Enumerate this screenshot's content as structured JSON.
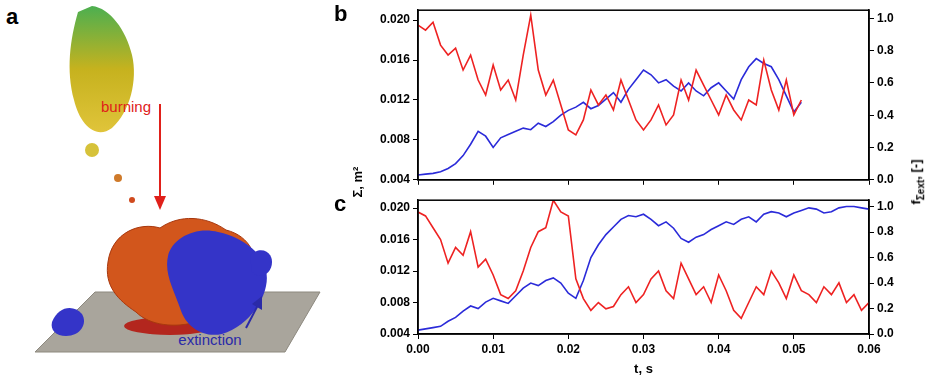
{
  "image_panel": {
    "panel_letter": "a",
    "annotations": [
      {
        "text": "burning",
        "color": "#e0201a"
      },
      {
        "text": "extinction",
        "color": "#2a2aa8"
      }
    ]
  },
  "shared_axes": {
    "ylabel": "Σ, m²",
    "y2label": {
      "main": "f",
      "sub": "Σext",
      "rest": ", [-]"
    }
  },
  "chart_data": [
    {
      "type": "line",
      "panel_letter": "b",
      "tick_labels": "y",
      "grid": false,
      "x": [
        0,
        0.001,
        0.002,
        0.003,
        0.004,
        0.005,
        0.006,
        0.007,
        0.008,
        0.009,
        0.01,
        0.011,
        0.012,
        0.013,
        0.014,
        0.015,
        0.016,
        0.017,
        0.018,
        0.019,
        0.02,
        0.021,
        0.022,
        0.023,
        0.024,
        0.025,
        0.026,
        0.027,
        0.028,
        0.029,
        0.03,
        0.031,
        0.032,
        0.033,
        0.034,
        0.035,
        0.036,
        0.037,
        0.038,
        0.039,
        0.04,
        0.041,
        0.042,
        0.043,
        0.044,
        0.045,
        0.046,
        0.047,
        0.048,
        0.049,
        0.05,
        0.051
      ],
      "xlim": [
        0,
        0.06
      ],
      "xticks": [
        0,
        0.01,
        0.02,
        0.03,
        0.04,
        0.05,
        0.06
      ],
      "ylim": [
        0.004,
        0.021
      ],
      "yticks": [
        {
          "value": 0.004,
          "label": "0.004"
        },
        {
          "value": 0.008,
          "label": "0.008"
        },
        {
          "value": 0.012,
          "label": "0.012"
        },
        {
          "value": 0.016,
          "label": "0.016"
        },
        {
          "value": 0.02,
          "label": "0.020"
        }
      ],
      "y2lim": [
        0,
        1.05
      ],
      "y2ticks": [
        {
          "value": 0,
          "label": "0.0"
        },
        {
          "value": 0.2,
          "label": "0.2"
        },
        {
          "value": 0.4,
          "label": "0.4"
        },
        {
          "value": 0.6,
          "label": "0.6"
        },
        {
          "value": 0.8,
          "label": "0.8"
        },
        {
          "value": 1,
          "label": "1.0"
        }
      ],
      "series": [
        {
          "name": "Σ",
          "color": "#ee2222",
          "axis": "y",
          "values": [
            0.0195,
            0.019,
            0.0198,
            0.0175,
            0.0165,
            0.0172,
            0.015,
            0.0165,
            0.014,
            0.0125,
            0.0155,
            0.013,
            0.014,
            0.012,
            0.0165,
            0.0205,
            0.015,
            0.0125,
            0.014,
            0.0115,
            0.009,
            0.0085,
            0.01,
            0.013,
            0.0115,
            0.0125,
            0.011,
            0.014,
            0.012,
            0.01,
            0.009,
            0.01,
            0.0115,
            0.0095,
            0.0105,
            0.014,
            0.012,
            0.015,
            0.0135,
            0.012,
            0.0105,
            0.0125,
            0.011,
            0.01,
            0.012,
            0.0115,
            0.016,
            0.013,
            0.011,
            0.014,
            0.0105,
            0.012
          ]
        },
        {
          "name": "fΣext",
          "color": "#2b2bd9",
          "axis": "y2",
          "values": [
            0.03,
            0.035,
            0.04,
            0.05,
            0.07,
            0.1,
            0.15,
            0.22,
            0.3,
            0.27,
            0.2,
            0.26,
            0.28,
            0.3,
            0.32,
            0.31,
            0.35,
            0.33,
            0.36,
            0.4,
            0.43,
            0.45,
            0.48,
            0.44,
            0.46,
            0.5,
            0.54,
            0.48,
            0.56,
            0.62,
            0.68,
            0.65,
            0.6,
            0.62,
            0.58,
            0.55,
            0.6,
            0.55,
            0.52,
            0.57,
            0.6,
            0.55,
            0.5,
            0.62,
            0.7,
            0.75,
            0.72,
            0.7,
            0.62,
            0.52,
            0.42,
            0.48
          ]
        }
      ]
    },
    {
      "type": "line",
      "panel_letter": "c",
      "grid": false,
      "xlabel": "t, s",
      "x": [
        0,
        0.001,
        0.002,
        0.003,
        0.004,
        0.005,
        0.006,
        0.007,
        0.008,
        0.009,
        0.01,
        0.011,
        0.012,
        0.013,
        0.014,
        0.015,
        0.016,
        0.017,
        0.018,
        0.019,
        0.02,
        0.021,
        0.022,
        0.023,
        0.024,
        0.025,
        0.026,
        0.027,
        0.028,
        0.029,
        0.03,
        0.031,
        0.032,
        0.033,
        0.034,
        0.035,
        0.036,
        0.037,
        0.038,
        0.039,
        0.04,
        0.041,
        0.042,
        0.043,
        0.044,
        0.045,
        0.046,
        0.047,
        0.048,
        0.049,
        0.05,
        0.051,
        0.052,
        0.053,
        0.054,
        0.055,
        0.056,
        0.057,
        0.058,
        0.059,
        0.06
      ],
      "xlim": [
        0,
        0.06
      ],
      "xticks": [
        {
          "value": 0,
          "label": "0.00"
        },
        {
          "value": 0.01,
          "label": "0.01"
        },
        {
          "value": 0.02,
          "label": "0.02"
        },
        {
          "value": 0.03,
          "label": "0.03"
        },
        {
          "value": 0.04,
          "label": "0.04"
        },
        {
          "value": 0.05,
          "label": "0.05"
        },
        {
          "value": 0.06,
          "label": "0.06"
        }
      ],
      "ylim": [
        0.004,
        0.021
      ],
      "yticks": [
        {
          "value": 0.004,
          "label": "0.004"
        },
        {
          "value": 0.008,
          "label": "0.008"
        },
        {
          "value": 0.012,
          "label": "0.012"
        },
        {
          "value": 0.016,
          "label": "0.016"
        },
        {
          "value": 0.02,
          "label": "0.020"
        }
      ],
      "y2lim": [
        0,
        1.05
      ],
      "y2ticks": [
        {
          "value": 0,
          "label": "0.0"
        },
        {
          "value": 0.2,
          "label": "0.2"
        },
        {
          "value": 0.4,
          "label": "0.4"
        },
        {
          "value": 0.6,
          "label": "0.6"
        },
        {
          "value": 0.8,
          "label": "0.8"
        },
        {
          "value": 1,
          "label": "1.0"
        }
      ],
      "series": [
        {
          "name": "Σ",
          "color": "#ee2222",
          "axis": "y",
          "values": [
            0.0195,
            0.019,
            0.0175,
            0.016,
            0.013,
            0.015,
            0.014,
            0.017,
            0.0125,
            0.0135,
            0.0115,
            0.009,
            0.0085,
            0.0095,
            0.012,
            0.015,
            0.017,
            0.0175,
            0.021,
            0.0195,
            0.019,
            0.011,
            0.0085,
            0.007,
            0.008,
            0.0072,
            0.0075,
            0.009,
            0.01,
            0.008,
            0.009,
            0.011,
            0.012,
            0.0095,
            0.0085,
            0.013,
            0.011,
            0.009,
            0.01,
            0.008,
            0.0115,
            0.0095,
            0.007,
            0.006,
            0.008,
            0.01,
            0.009,
            0.012,
            0.0105,
            0.0085,
            0.0115,
            0.0095,
            0.009,
            0.008,
            0.01,
            0.009,
            0.0105,
            0.008,
            0.009,
            0.007,
            0.008
          ]
        },
        {
          "name": "fΣext",
          "color": "#2b2bd9",
          "axis": "y2",
          "values": [
            0.03,
            0.04,
            0.05,
            0.06,
            0.1,
            0.13,
            0.18,
            0.22,
            0.2,
            0.25,
            0.28,
            0.26,
            0.24,
            0.3,
            0.36,
            0.4,
            0.38,
            0.42,
            0.44,
            0.4,
            0.32,
            0.28,
            0.42,
            0.6,
            0.7,
            0.78,
            0.84,
            0.9,
            0.93,
            0.92,
            0.94,
            0.9,
            0.85,
            0.88,
            0.83,
            0.75,
            0.72,
            0.76,
            0.78,
            0.82,
            0.85,
            0.88,
            0.86,
            0.9,
            0.92,
            0.88,
            0.94,
            0.96,
            0.95,
            0.92,
            0.95,
            0.97,
            0.99,
            0.98,
            0.95,
            0.96,
            0.99,
            1.0,
            1.0,
            0.99,
            0.98
          ]
        }
      ]
    }
  ]
}
